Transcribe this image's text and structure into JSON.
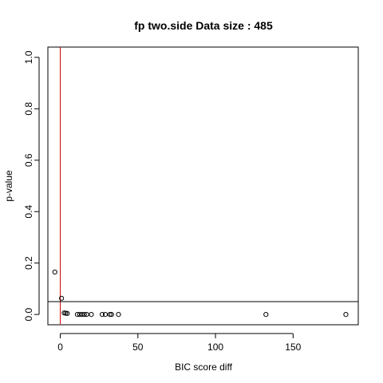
{
  "chart_data": {
    "type": "scatter",
    "title": "fp two.side Data size :  485",
    "xlabel": "BIC score diff",
    "ylabel": "p-value",
    "xlim": [
      -8,
      192
    ],
    "ylim": [
      -0.04,
      1.04
    ],
    "x_ticks": [
      0,
      50,
      100,
      150
    ],
    "y_ticks": [
      0.0,
      0.2,
      0.4,
      0.6,
      0.8,
      1.0
    ],
    "x_tick_labels": [
      "0",
      "50",
      "100",
      "150"
    ],
    "y_tick_labels": [
      "0.0",
      "0.2",
      "0.4",
      "0.6",
      "0.8",
      "1.0"
    ],
    "reference_lines": {
      "vertical_x": 0,
      "vertical_color": "#cc0000",
      "horizontal_y": 0.05,
      "horizontal_color": "#000000"
    },
    "points": [
      {
        "x": -3.5,
        "y": 0.165
      },
      {
        "x": 0.8,
        "y": 0.063
      },
      {
        "x": 2.5,
        "y": 0.006
      },
      {
        "x": 3.5,
        "y": 0.005
      },
      {
        "x": 4.5,
        "y": 0.004
      },
      {
        "x": 11,
        "y": 0.0
      },
      {
        "x": 12.5,
        "y": 0.0
      },
      {
        "x": 14,
        "y": 0.0
      },
      {
        "x": 15.5,
        "y": 0.0
      },
      {
        "x": 17,
        "y": 0.0
      },
      {
        "x": 20,
        "y": 0.0
      },
      {
        "x": 27,
        "y": 0.0
      },
      {
        "x": 29,
        "y": 0.0
      },
      {
        "x": 32,
        "y": 0.0
      },
      {
        "x": 33,
        "y": 0.0
      },
      {
        "x": 37.5,
        "y": 0.0
      },
      {
        "x": 132.5,
        "y": 0.0
      },
      {
        "x": 184,
        "y": 0.0
      }
    ]
  }
}
